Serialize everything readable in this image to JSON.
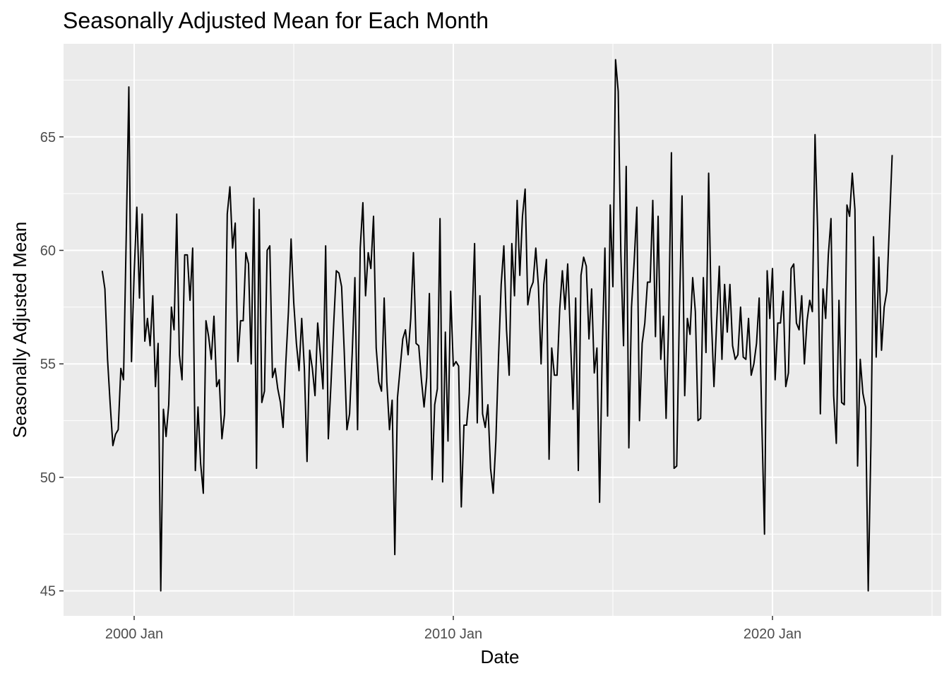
{
  "chart_data": {
    "type": "line",
    "title": "Seasonally Adjusted Mean for Each Month",
    "xlabel": "Date",
    "ylabel": "Seasonally Adjusted Mean",
    "x_start": "1999-01",
    "x_tick_labels": [
      "2000 Jan",
      "2010 Jan",
      "2020 Jan"
    ],
    "y_tick_labels": [
      "45",
      "50",
      "55",
      "60",
      "65"
    ],
    "ylim": [
      43.9,
      69.1
    ],
    "grid": true,
    "legend": "none",
    "colors": {
      "panel": "#ebebeb",
      "grid": "#ffffff",
      "line": "#000000",
      "tick_text": "#4d4d4d"
    },
    "series": [
      {
        "values": [
          59.1,
          58.3,
          55.2,
          53.2,
          51.4,
          51.9,
          52.1,
          54.8,
          54.3,
          60.5,
          67.2,
          55.1,
          59.0,
          61.9,
          57.9,
          61.6,
          56.0,
          57.0,
          55.8,
          58.0,
          54.0,
          55.9,
          45.0,
          53.0,
          51.8,
          53.2,
          57.5,
          56.5,
          61.6,
          55.4,
          54.3,
          59.8,
          59.8,
          57.8,
          60.1,
          50.3,
          53.1,
          50.6,
          49.3,
          56.9,
          56.2,
          55.2,
          57.1,
          54.0,
          54.3,
          51.7,
          52.8,
          61.6,
          62.8,
          60.1,
          61.2,
          55.1,
          56.9,
          56.9,
          59.9,
          59.4,
          55.0,
          62.3,
          50.4,
          61.8,
          53.3,
          53.8,
          60.0,
          60.2,
          54.4,
          54.8,
          53.9,
          53.3,
          52.2,
          55.0,
          57.3,
          60.5,
          57.7,
          55.9,
          54.7,
          57.0,
          54.8,
          50.7,
          55.6,
          54.8,
          53.6,
          56.8,
          55.4,
          53.9,
          60.2,
          51.7,
          54.1,
          56.7,
          59.1,
          59.0,
          58.4,
          55.5,
          52.1,
          52.8,
          55.5,
          58.8,
          52.1,
          60.1,
          62.1,
          58.0,
          59.9,
          59.2,
          61.5,
          55.7,
          54.2,
          53.8,
          57.9,
          54.2,
          52.1,
          53.4,
          46.6,
          53.5,
          54.8,
          56.1,
          56.5,
          55.4,
          57.0,
          59.9,
          55.9,
          55.8,
          54.3,
          53.1,
          54.4,
          58.1,
          49.9,
          53.2,
          53.9,
          61.4,
          49.8,
          56.4,
          51.6,
          58.2,
          54.9,
          55.1,
          54.9,
          48.7,
          52.3,
          52.3,
          53.7,
          56.7,
          60.3,
          52.4,
          58.0,
          52.8,
          52.2,
          53.2,
          50.4,
          49.3,
          51.6,
          55.3,
          58.5,
          60.2,
          56.5,
          54.5,
          60.3,
          58.0,
          62.2,
          58.9,
          61.5,
          62.7,
          57.6,
          58.3,
          58.6,
          60.1,
          58.4,
          55.0,
          58.5,
          59.6,
          50.8,
          55.7,
          54.5,
          54.5,
          57.4,
          59.1,
          57.4,
          59.4,
          56.3,
          53.0,
          57.9,
          50.3,
          58.9,
          59.7,
          59.3,
          56.1,
          58.3,
          54.6,
          55.7,
          48.9,
          55.6,
          60.1,
          52.7,
          62.0,
          58.4,
          68.4,
          67.0,
          59.8,
          55.8,
          63.7,
          51.3,
          57.5,
          59.5,
          61.9,
          52.5,
          55.9,
          56.8,
          58.6,
          58.6,
          62.2,
          56.2,
          61.5,
          55.2,
          57.1,
          52.6,
          57.0,
          64.3,
          50.4,
          50.5,
          57.3,
          62.4,
          53.6,
          57.0,
          56.3,
          58.8,
          57.3,
          52.5,
          52.6,
          58.8,
          55.5,
          63.4,
          57.1,
          54.0,
          56.8,
          59.3,
          55.2,
          58.5,
          56.4,
          58.5,
          55.8,
          55.2,
          55.4,
          57.5,
          55.3,
          55.2,
          57.0,
          54.5,
          55.0,
          55.9,
          57.9,
          52.4,
          47.5,
          59.1,
          57.0,
          59.2,
          54.3,
          56.8,
          56.8,
          58.2,
          54.0,
          54.6,
          59.2,
          59.4,
          56.8,
          56.5,
          58.0,
          55.0,
          56.9,
          57.8,
          57.3,
          65.1,
          60.8,
          52.8,
          58.3,
          57.0,
          59.8,
          61.4,
          53.6,
          51.5,
          57.8,
          53.3,
          53.2,
          62.0,
          61.5,
          63.4,
          61.8,
          50.5,
          55.2,
          53.7,
          53.1,
          45.0,
          51.4,
          60.6,
          55.3,
          59.7,
          55.6,
          57.5,
          58.2,
          61.2,
          64.2
        ]
      }
    ]
  }
}
